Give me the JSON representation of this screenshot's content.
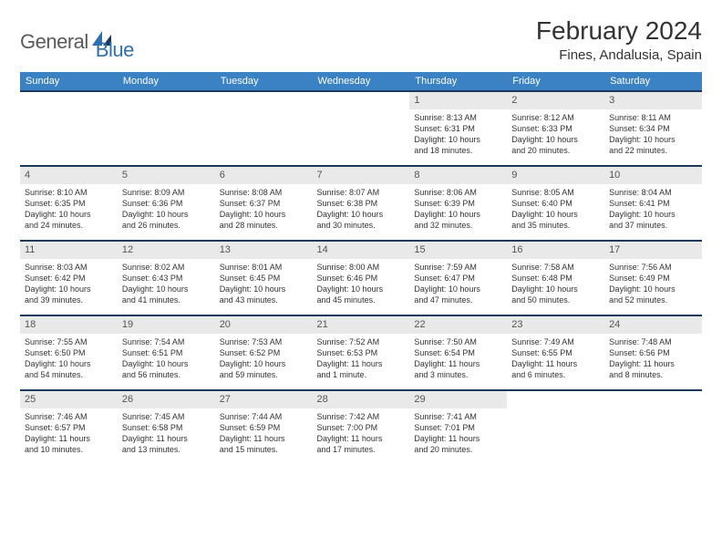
{
  "brand": {
    "general": "General",
    "blue": "Blue"
  },
  "title": "February 2024",
  "location": "Fines, Andalusia, Spain",
  "colors": {
    "header_bg": "#3b82c4",
    "header_text": "#ffffff",
    "row_border": "#1b3a5c",
    "daynum_bg": "#e9e9e9",
    "text": "#333333",
    "logo_gray": "#5a5a5a",
    "logo_blue": "#2f6fb0"
  },
  "weekdays": [
    "Sunday",
    "Monday",
    "Tuesday",
    "Wednesday",
    "Thursday",
    "Friday",
    "Saturday"
  ],
  "weeks": [
    [
      null,
      null,
      null,
      null,
      {
        "day": "1",
        "sunrise": "Sunrise: 8:13 AM",
        "sunset": "Sunset: 6:31 PM",
        "daylight1": "Daylight: 10 hours",
        "daylight2": "and 18 minutes."
      },
      {
        "day": "2",
        "sunrise": "Sunrise: 8:12 AM",
        "sunset": "Sunset: 6:33 PM",
        "daylight1": "Daylight: 10 hours",
        "daylight2": "and 20 minutes."
      },
      {
        "day": "3",
        "sunrise": "Sunrise: 8:11 AM",
        "sunset": "Sunset: 6:34 PM",
        "daylight1": "Daylight: 10 hours",
        "daylight2": "and 22 minutes."
      }
    ],
    [
      {
        "day": "4",
        "sunrise": "Sunrise: 8:10 AM",
        "sunset": "Sunset: 6:35 PM",
        "daylight1": "Daylight: 10 hours",
        "daylight2": "and 24 minutes."
      },
      {
        "day": "5",
        "sunrise": "Sunrise: 8:09 AM",
        "sunset": "Sunset: 6:36 PM",
        "daylight1": "Daylight: 10 hours",
        "daylight2": "and 26 minutes."
      },
      {
        "day": "6",
        "sunrise": "Sunrise: 8:08 AM",
        "sunset": "Sunset: 6:37 PM",
        "daylight1": "Daylight: 10 hours",
        "daylight2": "and 28 minutes."
      },
      {
        "day": "7",
        "sunrise": "Sunrise: 8:07 AM",
        "sunset": "Sunset: 6:38 PM",
        "daylight1": "Daylight: 10 hours",
        "daylight2": "and 30 minutes."
      },
      {
        "day": "8",
        "sunrise": "Sunrise: 8:06 AM",
        "sunset": "Sunset: 6:39 PM",
        "daylight1": "Daylight: 10 hours",
        "daylight2": "and 32 minutes."
      },
      {
        "day": "9",
        "sunrise": "Sunrise: 8:05 AM",
        "sunset": "Sunset: 6:40 PM",
        "daylight1": "Daylight: 10 hours",
        "daylight2": "and 35 minutes."
      },
      {
        "day": "10",
        "sunrise": "Sunrise: 8:04 AM",
        "sunset": "Sunset: 6:41 PM",
        "daylight1": "Daylight: 10 hours",
        "daylight2": "and 37 minutes."
      }
    ],
    [
      {
        "day": "11",
        "sunrise": "Sunrise: 8:03 AM",
        "sunset": "Sunset: 6:42 PM",
        "daylight1": "Daylight: 10 hours",
        "daylight2": "and 39 minutes."
      },
      {
        "day": "12",
        "sunrise": "Sunrise: 8:02 AM",
        "sunset": "Sunset: 6:43 PM",
        "daylight1": "Daylight: 10 hours",
        "daylight2": "and 41 minutes."
      },
      {
        "day": "13",
        "sunrise": "Sunrise: 8:01 AM",
        "sunset": "Sunset: 6:45 PM",
        "daylight1": "Daylight: 10 hours",
        "daylight2": "and 43 minutes."
      },
      {
        "day": "14",
        "sunrise": "Sunrise: 8:00 AM",
        "sunset": "Sunset: 6:46 PM",
        "daylight1": "Daylight: 10 hours",
        "daylight2": "and 45 minutes."
      },
      {
        "day": "15",
        "sunrise": "Sunrise: 7:59 AM",
        "sunset": "Sunset: 6:47 PM",
        "daylight1": "Daylight: 10 hours",
        "daylight2": "and 47 minutes."
      },
      {
        "day": "16",
        "sunrise": "Sunrise: 7:58 AM",
        "sunset": "Sunset: 6:48 PM",
        "daylight1": "Daylight: 10 hours",
        "daylight2": "and 50 minutes."
      },
      {
        "day": "17",
        "sunrise": "Sunrise: 7:56 AM",
        "sunset": "Sunset: 6:49 PM",
        "daylight1": "Daylight: 10 hours",
        "daylight2": "and 52 minutes."
      }
    ],
    [
      {
        "day": "18",
        "sunrise": "Sunrise: 7:55 AM",
        "sunset": "Sunset: 6:50 PM",
        "daylight1": "Daylight: 10 hours",
        "daylight2": "and 54 minutes."
      },
      {
        "day": "19",
        "sunrise": "Sunrise: 7:54 AM",
        "sunset": "Sunset: 6:51 PM",
        "daylight1": "Daylight: 10 hours",
        "daylight2": "and 56 minutes."
      },
      {
        "day": "20",
        "sunrise": "Sunrise: 7:53 AM",
        "sunset": "Sunset: 6:52 PM",
        "daylight1": "Daylight: 10 hours",
        "daylight2": "and 59 minutes."
      },
      {
        "day": "21",
        "sunrise": "Sunrise: 7:52 AM",
        "sunset": "Sunset: 6:53 PM",
        "daylight1": "Daylight: 11 hours",
        "daylight2": "and 1 minute."
      },
      {
        "day": "22",
        "sunrise": "Sunrise: 7:50 AM",
        "sunset": "Sunset: 6:54 PM",
        "daylight1": "Daylight: 11 hours",
        "daylight2": "and 3 minutes."
      },
      {
        "day": "23",
        "sunrise": "Sunrise: 7:49 AM",
        "sunset": "Sunset: 6:55 PM",
        "daylight1": "Daylight: 11 hours",
        "daylight2": "and 6 minutes."
      },
      {
        "day": "24",
        "sunrise": "Sunrise: 7:48 AM",
        "sunset": "Sunset: 6:56 PM",
        "daylight1": "Daylight: 11 hours",
        "daylight2": "and 8 minutes."
      }
    ],
    [
      {
        "day": "25",
        "sunrise": "Sunrise: 7:46 AM",
        "sunset": "Sunset: 6:57 PM",
        "daylight1": "Daylight: 11 hours",
        "daylight2": "and 10 minutes."
      },
      {
        "day": "26",
        "sunrise": "Sunrise: 7:45 AM",
        "sunset": "Sunset: 6:58 PM",
        "daylight1": "Daylight: 11 hours",
        "daylight2": "and 13 minutes."
      },
      {
        "day": "27",
        "sunrise": "Sunrise: 7:44 AM",
        "sunset": "Sunset: 6:59 PM",
        "daylight1": "Daylight: 11 hours",
        "daylight2": "and 15 minutes."
      },
      {
        "day": "28",
        "sunrise": "Sunrise: 7:42 AM",
        "sunset": "Sunset: 7:00 PM",
        "daylight1": "Daylight: 11 hours",
        "daylight2": "and 17 minutes."
      },
      {
        "day": "29",
        "sunrise": "Sunrise: 7:41 AM",
        "sunset": "Sunset: 7:01 PM",
        "daylight1": "Daylight: 11 hours",
        "daylight2": "and 20 minutes."
      },
      null,
      null
    ]
  ]
}
